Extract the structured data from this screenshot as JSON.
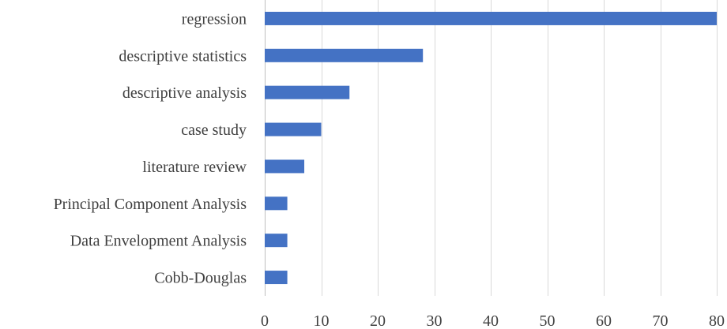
{
  "chart_data": {
    "type": "bar",
    "orientation": "horizontal",
    "categories": [
      "regression",
      "descriptive statistics",
      "descriptive analysis",
      "case study",
      "literature review",
      "Principal Component Analysis",
      "Data Envelopment Analysis",
      "Cobb-Douglas"
    ],
    "values": [
      80,
      28,
      15,
      10,
      7,
      4,
      4,
      4
    ],
    "xlim": [
      0,
      80
    ],
    "xticks": [
      0,
      10,
      20,
      30,
      40,
      50,
      60,
      70,
      80
    ],
    "title": "",
    "xlabel": "",
    "ylabel": "",
    "grid": "vertical",
    "legend": "none",
    "bar_color": "#4472c4"
  }
}
